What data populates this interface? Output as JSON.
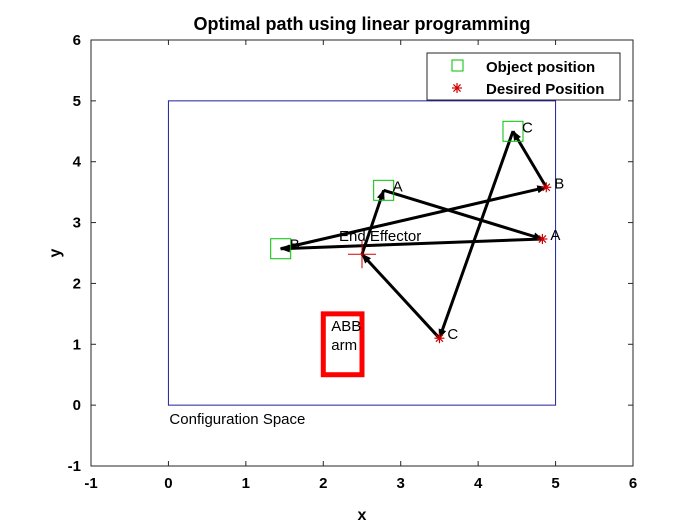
{
  "chart_data": {
    "type": "scatter",
    "title": "Optimal path using linear programming",
    "xlabel": "x",
    "ylabel": "y",
    "xlim": [
      -1,
      6
    ],
    "ylim": [
      -1,
      6
    ],
    "xticks": [
      "-1",
      "0",
      "1",
      "2",
      "3",
      "4",
      "5",
      "6"
    ],
    "yticks": [
      "-1",
      "0",
      "1",
      "2",
      "3",
      "4",
      "5",
      "6"
    ],
    "grid": false,
    "legend_position": "top-right",
    "colors": {
      "object": "#00c000",
      "desired": "#d00000",
      "path": "#000000",
      "workspace": "#2020a0",
      "arm": "#ff0000"
    },
    "legend": [
      {
        "label": "Object position",
        "marker": "square"
      },
      {
        "label": "Desired Position",
        "marker": "asterisk"
      }
    ],
    "configuration_space": {
      "label": "Configuration Space",
      "x": [
        0,
        5
      ],
      "y": [
        0,
        5
      ]
    },
    "end_effector": {
      "label": "End Effector",
      "x": 2.5,
      "y": 2.48
    },
    "arm": {
      "label_line1": "ABB",
      "label_line2": "arm",
      "x": [
        2.0,
        2.5
      ],
      "y": [
        0.5,
        1.5
      ]
    },
    "objects": [
      {
        "label": "A",
        "x": 2.78,
        "y": 3.53
      },
      {
        "label": "B",
        "x": 1.45,
        "y": 2.57
      },
      {
        "label": "C",
        "x": 4.45,
        "y": 4.5
      }
    ],
    "desired": [
      {
        "label": "A",
        "x": 4.83,
        "y": 2.73
      },
      {
        "label": "B",
        "x": 4.88,
        "y": 3.58
      },
      {
        "label": "C",
        "x": 3.5,
        "y": 1.1
      }
    ],
    "path": {
      "x": [
        2.5,
        2.78,
        4.83,
        1.45,
        4.88,
        4.45,
        3.5,
        2.5
      ],
      "y": [
        2.48,
        3.53,
        2.73,
        2.57,
        3.58,
        4.5,
        1.1,
        2.48
      ]
    }
  }
}
